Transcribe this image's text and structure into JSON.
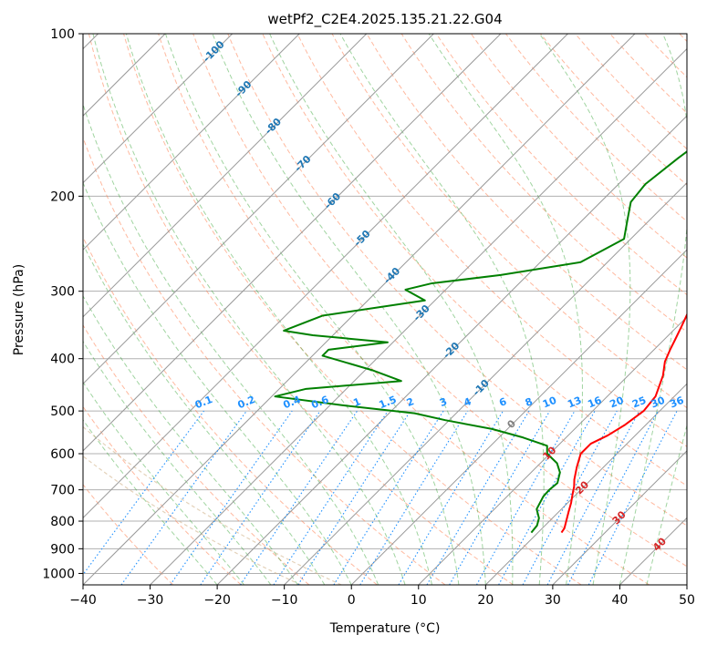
{
  "chart_data": {
    "type": "line",
    "title": "wetPf2_C2E4.2025.135.21.22.G04",
    "xlabel": "Temperature (°C)",
    "ylabel": "Pressure (hPa)",
    "xlim": [
      -40,
      50
    ],
    "ylim": [
      1050,
      100
    ],
    "y_scale": "log",
    "x_ticks": [
      -40,
      -30,
      -20,
      -10,
      0,
      10,
      20,
      30,
      40,
      50
    ],
    "x_tick_labels": [
      "−40",
      "−30",
      "−20",
      "−10",
      "0",
      "10",
      "20",
      "30",
      "40",
      "50"
    ],
    "y_ticks": [
      100,
      200,
      300,
      400,
      500,
      600,
      700,
      800,
      900,
      1000
    ],
    "y_tick_labels": [
      "100",
      "200",
      "300",
      "400",
      "500",
      "600",
      "700",
      "800",
      "900",
      "1000"
    ],
    "grid": true,
    "skew": true,
    "isotherm_labels": [
      {
        "t": -100,
        "label": "-100"
      },
      {
        "t": -90,
        "label": "-90"
      },
      {
        "t": -80,
        "label": "-80"
      },
      {
        "t": -70,
        "label": "-70"
      },
      {
        "t": -60,
        "label": "-60"
      },
      {
        "t": -50,
        "label": "-50"
      },
      {
        "t": -40,
        "label": "-40"
      },
      {
        "t": -30,
        "label": "-30"
      },
      {
        "t": -20,
        "label": "-20"
      },
      {
        "t": -10,
        "label": "-10"
      },
      {
        "t": 0,
        "label": "0"
      },
      {
        "t": 10,
        "label": "10"
      },
      {
        "t": 20,
        "label": "20"
      },
      {
        "t": 30,
        "label": "30"
      },
      {
        "t": 40,
        "label": "40"
      }
    ],
    "mixing_ratio_labels": [
      "0.1",
      "0.2",
      "0.4",
      "0.6",
      "1",
      "1.5",
      "2",
      "3",
      "4",
      "6",
      "8",
      "10",
      "13",
      "16",
      "20",
      "25",
      "30",
      "36"
    ],
    "mixing_ratio_values": [
      0.1,
      0.2,
      0.4,
      0.6,
      1,
      1.5,
      2,
      3,
      4,
      6,
      8,
      10,
      13,
      16,
      20,
      25,
      30,
      36
    ],
    "series": [
      {
        "color": "#ff0000",
        "points": [
          [
            23.5,
            840
          ],
          [
            23.3,
            825
          ],
          [
            21.5,
            770
          ],
          [
            20.5,
            740
          ],
          [
            19.5,
            715
          ],
          [
            18.5,
            690
          ],
          [
            17.5,
            670
          ],
          [
            16.0,
            635
          ],
          [
            14.6,
            600
          ],
          [
            14.6,
            575
          ],
          [
            15.9,
            555
          ],
          [
            16.9,
            530
          ],
          [
            17.6,
            500
          ],
          [
            17.2,
            470
          ],
          [
            15.2,
            430
          ],
          [
            13.4,
            405
          ],
          [
            12.4,
            385
          ],
          [
            11.7,
            370
          ],
          [
            10.7,
            350
          ],
          [
            9.6,
            330
          ],
          [
            8.5,
            310
          ],
          [
            6.9,
            290
          ],
          [
            5.0,
            270
          ],
          [
            3.3,
            250
          ],
          [
            1.9,
            230
          ],
          [
            0.8,
            210
          ],
          [
            0.0,
            195
          ],
          [
            -0.9,
            180
          ],
          [
            -1.4,
            165
          ],
          [
            -2.0,
            150
          ],
          [
            -2.5,
            140
          ],
          [
            -3.4,
            132
          ],
          [
            -2.4,
            125
          ],
          [
            -0.2,
            117
          ],
          [
            1.9,
            110
          ],
          [
            3.3,
            105
          ],
          [
            4.0,
            100
          ]
        ]
      },
      {
        "color": "#008000",
        "points": [
          [
            19.0,
            840
          ],
          [
            18.8,
            815
          ],
          [
            18.0,
            790
          ],
          [
            16.3,
            760
          ],
          [
            15.4,
            720
          ],
          [
            15.3,
            700
          ],
          [
            15.5,
            680
          ],
          [
            14.3,
            650
          ],
          [
            12.5,
            625
          ],
          [
            9.6,
            600
          ],
          [
            8.4,
            580
          ],
          [
            3.6,
            560
          ],
          [
            -2.3,
            540
          ],
          [
            -10.6,
            520
          ],
          [
            -16.2,
            505
          ],
          [
            -28.1,
            488
          ],
          [
            -39.5,
            470
          ],
          [
            -36.0,
            455
          ],
          [
            -23.0,
            440
          ],
          [
            -29.0,
            420
          ],
          [
            -38.5,
            395
          ],
          [
            -38.5,
            385
          ],
          [
            -30.8,
            373
          ],
          [
            -43.0,
            362
          ],
          [
            -48.0,
            355
          ],
          [
            -44.5,
            333
          ],
          [
            -31.5,
            312
          ],
          [
            -36.0,
            298
          ],
          [
            -33.0,
            290
          ],
          [
            -24.0,
            280
          ],
          [
            -14.0,
            265
          ],
          [
            -11.0,
            240
          ],
          [
            -13.5,
            220
          ],
          [
            -15.5,
            205
          ],
          [
            -16.0,
            190
          ],
          [
            -15.0,
            170
          ],
          [
            -13.5,
            150
          ],
          [
            -11.5,
            140
          ],
          [
            -8.8,
            130
          ],
          [
            -7.5,
            120
          ],
          [
            -5.2,
            110
          ],
          [
            -2.5,
            100
          ]
        ]
      }
    ]
  },
  "colors": {
    "temperature": "#ff0000",
    "dewpoint": "#008000",
    "isotherm_label": "#1f77b4",
    "dry_adiabat": "#ff7f50",
    "moist_adiabat": "#2ca02c",
    "mixing_ratio": "#1e90ff",
    "warm_label": "#d62728",
    "zero_label": "#808080",
    "cc_fill": "#d2b48c"
  }
}
